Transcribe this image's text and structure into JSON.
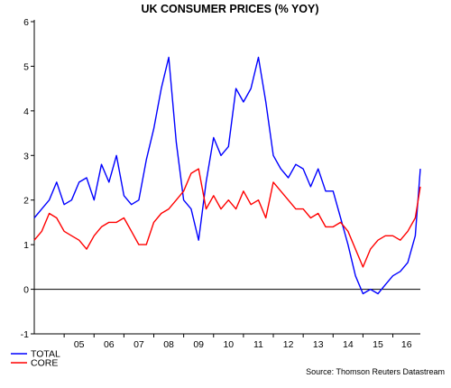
{
  "chart_data": {
    "type": "line",
    "title": "UK CONSUMER PRICES (% YOY)",
    "xlabel": "",
    "ylabel": "",
    "source": "Source: Thomson Reuters Datastream",
    "x_tick_labels": [
      "05",
      "06",
      "07",
      "08",
      "09",
      "10",
      "11",
      "12",
      "13",
      "14",
      "15",
      "16"
    ],
    "y_ticks": [
      6,
      5,
      4,
      3,
      2,
      1,
      0,
      -1
    ],
    "y_tick_labels": [
      "6",
      "5",
      "4",
      "3",
      "2",
      "1",
      "0",
      "-1"
    ],
    "ylim": [
      -1,
      6
    ],
    "xlim": [
      2004.0,
      2016.92
    ],
    "legend_position": "bottom-left",
    "series": [
      {
        "name": "TOTAL",
        "color": "#0000ff",
        "x": [
          2004.0,
          2004.25,
          2004.5,
          2004.75,
          2005.0,
          2005.25,
          2005.5,
          2005.75,
          2006.0,
          2006.25,
          2006.5,
          2006.75,
          2007.0,
          2007.25,
          2007.5,
          2007.75,
          2008.0,
          2008.25,
          2008.5,
          2008.75,
          2009.0,
          2009.25,
          2009.5,
          2009.75,
          2010.0,
          2010.25,
          2010.5,
          2010.75,
          2011.0,
          2011.25,
          2011.5,
          2011.75,
          2012.0,
          2012.25,
          2012.5,
          2012.75,
          2013.0,
          2013.25,
          2013.5,
          2013.75,
          2014.0,
          2014.25,
          2014.5,
          2014.75,
          2015.0,
          2015.25,
          2015.5,
          2015.75,
          2016.0,
          2016.25,
          2016.5,
          2016.75,
          2016.92
        ],
        "values": [
          1.6,
          1.8,
          2.0,
          2.4,
          1.9,
          2.0,
          2.4,
          2.5,
          2.0,
          2.8,
          2.4,
          3.0,
          2.1,
          1.9,
          2.0,
          2.9,
          3.6,
          4.5,
          5.2,
          3.3,
          2.0,
          1.8,
          1.1,
          2.4,
          3.4,
          3.0,
          3.2,
          4.5,
          4.2,
          4.5,
          5.2,
          4.2,
          3.0,
          2.7,
          2.5,
          2.8,
          2.7,
          2.3,
          2.7,
          2.2,
          2.2,
          1.6,
          1.0,
          0.3,
          -0.1,
          0.0,
          -0.1,
          0.1,
          0.3,
          0.4,
          0.6,
          1.2,
          2.7
        ]
      },
      {
        "name": "CORE",
        "color": "#ff0000",
        "x": [
          2004.0,
          2004.25,
          2004.5,
          2004.75,
          2005.0,
          2005.25,
          2005.5,
          2005.75,
          2006.0,
          2006.25,
          2006.5,
          2006.75,
          2007.0,
          2007.25,
          2007.5,
          2007.75,
          2008.0,
          2008.25,
          2008.5,
          2008.75,
          2009.0,
          2009.25,
          2009.5,
          2009.75,
          2010.0,
          2010.25,
          2010.5,
          2010.75,
          2011.0,
          2011.25,
          2011.5,
          2011.75,
          2012.0,
          2012.25,
          2012.5,
          2012.75,
          2013.0,
          2013.25,
          2013.5,
          2013.75,
          2014.0,
          2014.25,
          2014.5,
          2014.75,
          2015.0,
          2015.25,
          2015.5,
          2015.75,
          2016.0,
          2016.25,
          2016.5,
          2016.75,
          2016.92
        ],
        "values": [
          1.1,
          1.3,
          1.7,
          1.6,
          1.3,
          1.2,
          1.1,
          0.9,
          1.2,
          1.4,
          1.5,
          1.5,
          1.6,
          1.3,
          1.0,
          1.0,
          1.5,
          1.7,
          1.8,
          2.0,
          2.2,
          2.6,
          2.7,
          1.8,
          2.1,
          1.8,
          2.0,
          1.8,
          2.2,
          1.9,
          2.0,
          1.6,
          2.4,
          2.2,
          2.0,
          1.8,
          1.8,
          1.6,
          1.7,
          1.4,
          1.4,
          1.5,
          1.3,
          0.9,
          0.5,
          0.9,
          1.1,
          1.2,
          1.2,
          1.1,
          1.3,
          1.6,
          2.3
        ]
      }
    ]
  }
}
